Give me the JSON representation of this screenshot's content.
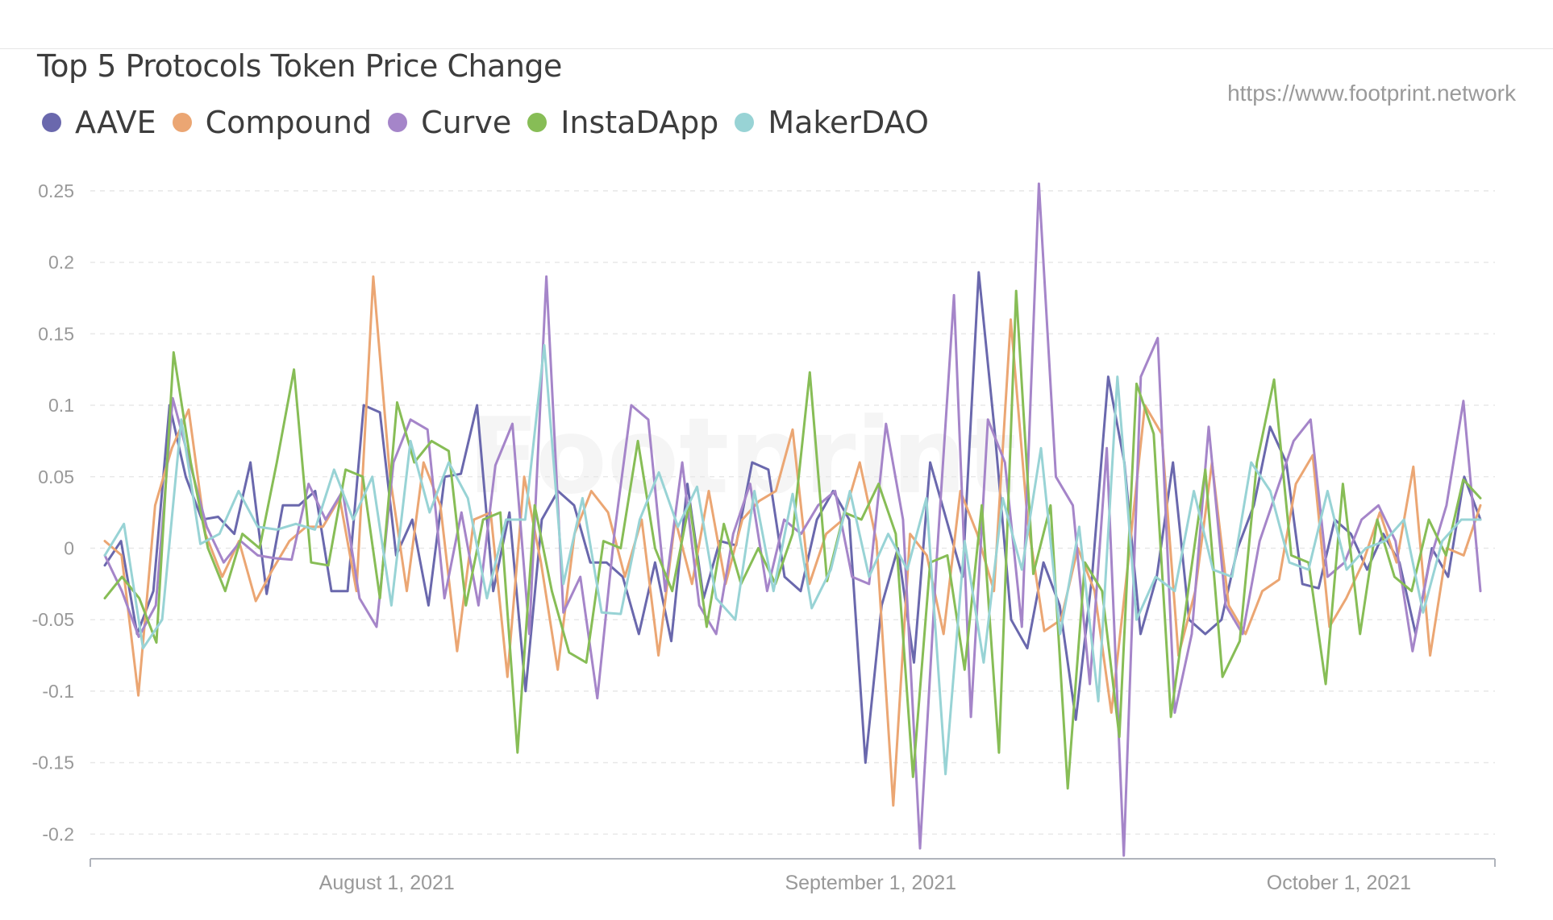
{
  "header": {
    "title": "Top 5 Protocols Token Price Change",
    "source": "https://www.footprint.network",
    "watermark": "Footprint"
  },
  "legend": [
    {
      "label": "AAVE",
      "color": "#6a68ad"
    },
    {
      "label": "Compound",
      "color": "#eba673"
    },
    {
      "label": "Curve",
      "color": "#a585c9"
    },
    {
      "label": "InstaDApp",
      "color": "#87bd56"
    },
    {
      "label": "MakerDAO",
      "color": "#98d3d5"
    }
  ],
  "chart_data": {
    "type": "line",
    "x_start": "2021-07-13",
    "x_end": "2021-10-11",
    "x_tick_labels": [
      {
        "date": "2021-08-01",
        "label": "August 1, 2021"
      },
      {
        "date": "2021-09-01",
        "label": "September 1, 2021"
      },
      {
        "date": "2021-10-01",
        "label": "October 1, 2021"
      }
    ],
    "y_ticks": [
      0.25,
      0.2,
      0.15,
      0.1,
      0.05,
      0,
      -0.05,
      -0.1,
      -0.15,
      -0.2
    ],
    "y_tick_labels": [
      "0.25",
      "0.2",
      "0.15",
      "0.1",
      "0.05",
      "0",
      "-0.05",
      "-0.1",
      "-0.15",
      "-0.2"
    ],
    "ylim": [
      -0.215,
      0.255
    ],
    "grid": "horizontal-dashed",
    "legend_position": "top-left",
    "series": [
      {
        "name": "AAVE",
        "color": "#6a68ad",
        "values": [
          -0.012,
          0.005,
          -0.06,
          -0.03,
          0.1,
          0.05,
          0.02,
          0.022,
          0.01,
          0.06,
          -0.032,
          0.03,
          0.03,
          0.04,
          -0.03,
          -0.03,
          0.1,
          0.095,
          -0.005,
          0.02,
          -0.04,
          0.05,
          0.052,
          0.1,
          -0.03,
          0.025,
          -0.1,
          0.02,
          0.04,
          0.03,
          -0.01,
          -0.01,
          -0.02,
          -0.06,
          -0.01,
          -0.065,
          0.045,
          -0.035,
          0.005,
          0.002,
          0.06,
          0.055,
          -0.02,
          -0.03,
          0.02,
          0.04,
          0.02,
          -0.15,
          -0.04,
          0,
          -0.08,
          0.06,
          0.02,
          -0.02,
          0.193,
          0.08,
          -0.05,
          -0.07,
          -0.01,
          -0.04,
          -0.12,
          -0.02,
          0.12,
          0.06,
          -0.06,
          -0.02,
          0.06,
          -0.05,
          -0.06,
          -0.05,
          0,
          0.03,
          0.085,
          0.06,
          -0.025,
          -0.028,
          0.02,
          0.01,
          -0.015,
          0.01,
          -0.01,
          -0.06,
          0,
          -0.02,
          0.05,
          0.02
        ]
      },
      {
        "name": "Compound",
        "color": "#eba673",
        "values": [
          0.005,
          -0.005,
          -0.103,
          0.03,
          0.07,
          0.097,
          0.01,
          -0.02,
          0.005,
          -0.037,
          -0.015,
          0.005,
          0.015,
          0.015,
          0.035,
          -0.03,
          0.19,
          0.05,
          -0.03,
          0.06,
          0.03,
          -0.072,
          0.02,
          0.025,
          -0.09,
          0.05,
          -0.01,
          -0.085,
          0.01,
          0.04,
          0.025,
          -0.02,
          0.02,
          -0.075,
          0.02,
          -0.025,
          0.04,
          -0.025,
          0.02,
          0.033,
          0.04,
          0.083,
          -0.025,
          0.01,
          0.02,
          0.06,
          0.005,
          -0.18,
          0.01,
          -0.005,
          -0.06,
          0.04,
          0.01,
          -0.03,
          0.16,
          0.02,
          -0.058,
          -0.05,
          0,
          -0.03,
          -0.115,
          -0.01,
          0.1,
          0.08,
          -0.075,
          -0.03,
          0.06,
          -0.04,
          -0.06,
          -0.03,
          -0.022,
          0.045,
          0.065,
          -0.055,
          -0.035,
          -0.01,
          0.025,
          -0.01,
          0.057,
          -0.075,
          0,
          -0.005,
          0.03
        ]
      },
      {
        "name": "Curve",
        "color": "#a585c9",
        "values": [
          -0.005,
          -0.03,
          -0.062,
          -0.04,
          0.105,
          0.06,
          0.015,
          -0.01,
          0.005,
          -0.005,
          -0.007,
          -0.008,
          0.045,
          0.02,
          0.04,
          -0.035,
          -0.055,
          0.06,
          0.09,
          0.083,
          -0.035,
          0.025,
          -0.04,
          0.058,
          0.087,
          -0.06,
          0.19,
          -0.045,
          -0.02,
          -0.105,
          0.01,
          0.1,
          0.09,
          -0.03,
          0.06,
          -0.04,
          -0.06,
          0.01,
          0.045,
          -0.03,
          0.02,
          0.01,
          0.03,
          0.04,
          -0.02,
          -0.025,
          0.087,
          0.02,
          -0.21,
          -0.005,
          0.177,
          -0.118,
          0.09,
          0.06,
          -0.055,
          0.255,
          0.05,
          0.03,
          -0.095,
          0.07,
          -0.215,
          0.12,
          0.147,
          -0.115,
          -0.06,
          0.085,
          -0.04,
          -0.06,
          0.005,
          0.04,
          0.075,
          0.09,
          -0.02,
          -0.01,
          0.02,
          0.03,
          0.005,
          -0.072,
          -0.01,
          0.03,
          0.103,
          -0.03
        ]
      },
      {
        "name": "InstaDApp",
        "color": "#87bd56",
        "values": [
          -0.035,
          -0.02,
          -0.035,
          -0.066,
          0.137,
          0.06,
          0,
          -0.03,
          0.01,
          0,
          0.06,
          0.125,
          -0.01,
          -0.012,
          0.055,
          0.05,
          -0.035,
          0.102,
          0.06,
          0.075,
          0.068,
          -0.04,
          0.02,
          0.025,
          -0.143,
          0.03,
          -0.03,
          -0.073,
          -0.08,
          0.005,
          0,
          0.075,
          0,
          -0.03,
          0.032,
          -0.055,
          0.017,
          -0.025,
          0,
          -0.025,
          0.01,
          0.123,
          -0.023,
          0.025,
          0.02,
          0.045,
          0.01,
          -0.16,
          -0.01,
          -0.005,
          -0.085,
          0.03,
          -0.143,
          0.18,
          -0.018,
          0.03,
          -0.168,
          -0.01,
          -0.03,
          -0.132,
          0.115,
          0.08,
          -0.118,
          -0.03,
          0.055,
          -0.09,
          -0.065,
          0.06,
          0.118,
          -0.005,
          -0.01,
          -0.095,
          0.045,
          -0.06,
          0.02,
          -0.02,
          -0.03,
          0.02,
          -0.005,
          0.048,
          0.035
        ]
      },
      {
        "name": "MakerDAO",
        "color": "#98d3d5",
        "values": [
          -0.005,
          0.017,
          -0.07,
          -0.05,
          0.09,
          0.003,
          0.01,
          0.04,
          0.015,
          0.013,
          0.017,
          0.013,
          0.055,
          0.02,
          0.05,
          -0.04,
          0.075,
          0.025,
          0.06,
          0.035,
          -0.035,
          0.02,
          0.02,
          0.142,
          -0.025,
          0.035,
          -0.045,
          -0.046,
          0.02,
          0.053,
          0.015,
          0.043,
          -0.035,
          -0.05,
          0.04,
          -0.03,
          0.038,
          -0.042,
          -0.015,
          0.04,
          -0.02,
          0.01,
          -0.015,
          0.035,
          -0.158,
          0.005,
          -0.08,
          0.035,
          -0.015,
          0.07,
          -0.06,
          0.015,
          -0.107,
          0.12,
          -0.05,
          -0.02,
          -0.03,
          0.04,
          -0.015,
          -0.02,
          0.06,
          0.04,
          -0.01,
          -0.015,
          0.04,
          -0.015,
          0,
          0.005,
          0.02,
          -0.045,
          0.005,
          0.02,
          0.02
        ]
      }
    ]
  }
}
